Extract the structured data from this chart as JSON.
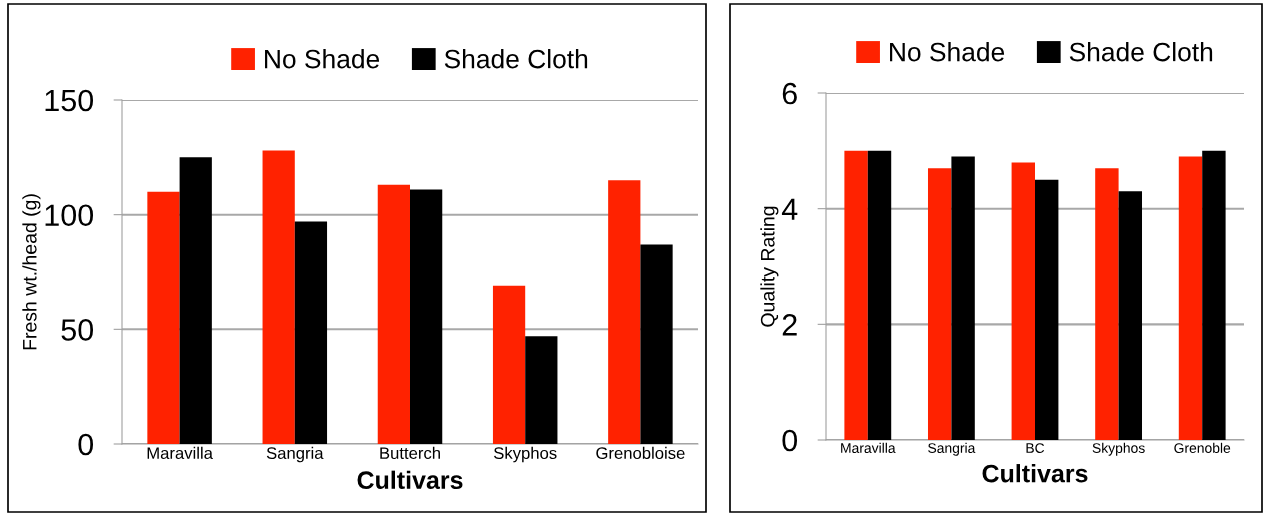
{
  "chart_data": [
    {
      "type": "bar",
      "xlabel": "Cultivars",
      "ylabel": "Fresh wt./head (g)",
      "categories": [
        "Maravilla",
        "Sangria",
        "Butterch",
        "Skyphos",
        "Grenobloise"
      ],
      "series": [
        {
          "name": "No Shade",
          "color": "#ff2200",
          "values": [
            110,
            128,
            113,
            69,
            115
          ]
        },
        {
          "name": "Shade Cloth",
          "color": "#000000",
          "values": [
            125,
            97,
            111,
            47,
            87
          ]
        }
      ],
      "ylim": [
        0,
        150
      ],
      "yticks": [
        0,
        50,
        100,
        150
      ],
      "grid": "y",
      "legend": "top"
    },
    {
      "type": "bar",
      "xlabel": "Cultivars",
      "ylabel": "Quality Rating",
      "categories": [
        "Maravilla",
        "Sangria",
        "BC",
        "Skyphos",
        "Grenoble"
      ],
      "series": [
        {
          "name": "No Shade",
          "color": "#ff2200",
          "values": [
            5.0,
            4.7,
            4.8,
            4.7,
            4.9
          ]
        },
        {
          "name": "Shade Cloth",
          "color": "#000000",
          "values": [
            5.0,
            4.9,
            4.5,
            4.3,
            5.0
          ]
        }
      ],
      "ylim": [
        0,
        6
      ],
      "yticks": [
        0,
        2,
        4,
        6
      ],
      "grid": "y",
      "legend": "top"
    }
  ]
}
